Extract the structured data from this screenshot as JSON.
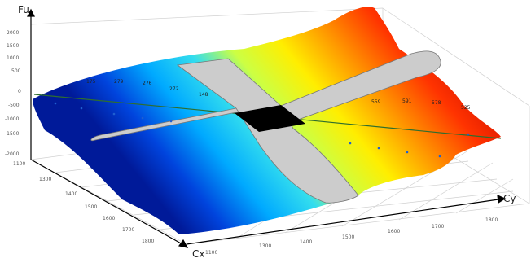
{
  "chart_data": {
    "type": "surface",
    "title": "",
    "axes": {
      "x": {
        "label": "Cx",
        "ticks": [
          "1100",
          "1300",
          "1400",
          "1500",
          "1600",
          "1700",
          "1800"
        ]
      },
      "y": {
        "label": "Cy",
        "ticks": [
          "1100",
          "1300",
          "1400",
          "1500",
          "1600",
          "1700",
          "1800"
        ]
      },
      "z": {
        "label": "Fu",
        "ticks": [
          "2000",
          "1500",
          "1000",
          "500",
          "0",
          "-500",
          "-1000",
          "-1500",
          "-2000"
        ],
        "zlim": [
          -2000,
          2000
        ]
      }
    },
    "grid": true,
    "colormap": "jet",
    "surface": {
      "rows_cy": [
        1100,
        1300,
        1500,
        1700,
        1800
      ],
      "cols_cx": [
        1100,
        1300,
        1500,
        1700,
        1800
      ],
      "fu": [
        [
          100,
          400,
          900,
          1500,
          2000
        ],
        [
          -100,
          200,
          500,
          900,
          1300
        ],
        [
          -500,
          -300,
          0,
          300,
          600
        ],
        [
          -1200,
          -900,
          -500,
          -200,
          100
        ],
        [
          -2000,
          -1700,
          -1300,
          -900,
          -600
        ]
      ]
    },
    "overlays": [
      "zero-plane-cross-band",
      "center-zero-region"
    ],
    "labeled_points_left": [
      "175",
      "279",
      "276",
      "272",
      "148"
    ],
    "labeled_points_right": [
      "559",
      "591",
      "578",
      "525"
    ]
  }
}
